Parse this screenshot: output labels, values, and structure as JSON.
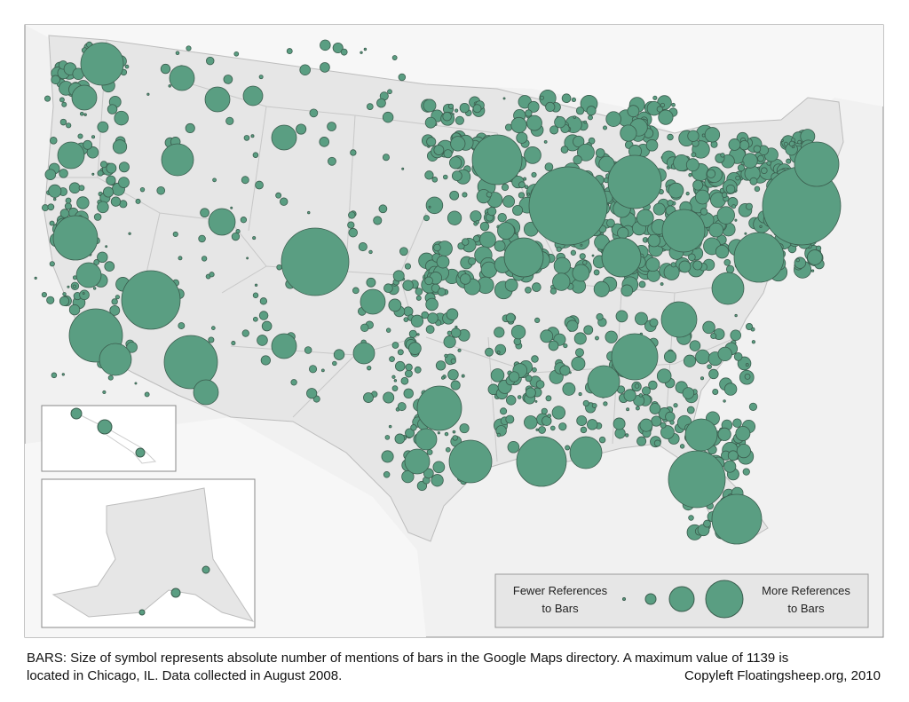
{
  "legend": {
    "fewer": [
      "Fewer References",
      "to Bars"
    ],
    "more": [
      "More References",
      "to Bars"
    ]
  },
  "caption": {
    "line1": "BARS: Size of symbol represents absolute number of mentions of bars in the Google Maps directory. A maximum value of 1139 is",
    "line2": "located in Chicago, IL. Data collected in August 2008.",
    "credit": "Copyleft Floatingsheep.org, 2010"
  }
}
